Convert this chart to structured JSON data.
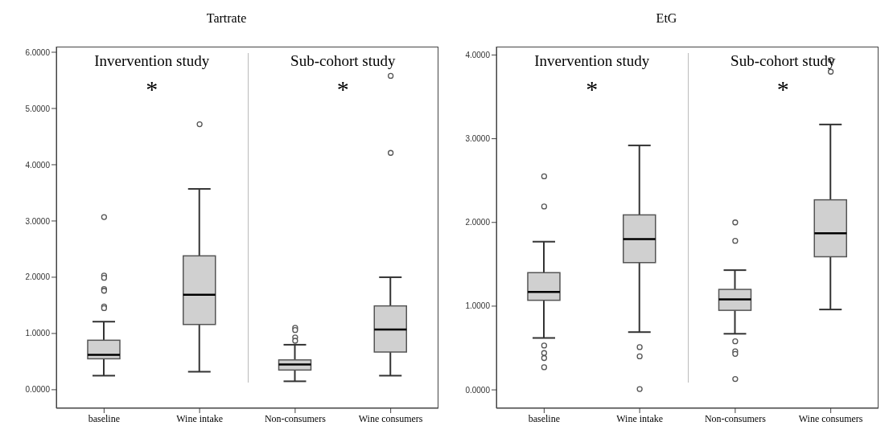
{
  "chart_data": [
    {
      "type": "box",
      "title": "Tartrate",
      "categories": [
        "baseline",
        "Wine intake",
        "Non-consumers",
        "Wine consumers"
      ],
      "color": "#d0d0d0",
      "boxes": [
        {
          "low": 0.25,
          "q1": 0.55,
          "median": 0.62,
          "q3": 0.88,
          "high": 1.21,
          "outliers": [
            3.07,
            2.03,
            1.99,
            1.79,
            1.76,
            1.48,
            1.45
          ]
        },
        {
          "low": 0.32,
          "q1": 1.16,
          "median": 1.69,
          "q3": 2.38,
          "high": 3.57,
          "outliers": [
            4.72
          ]
        },
        {
          "low": 0.15,
          "q1": 0.35,
          "median": 0.45,
          "q3": 0.53,
          "high": 0.8,
          "outliers": [
            1.1,
            1.06,
            0.93,
            0.87
          ]
        },
        {
          "low": 0.25,
          "q1": 0.67,
          "median": 1.07,
          "q3": 1.49,
          "high": 2.0,
          "outliers": [
            5.58,
            4.21
          ]
        }
      ],
      "ylim": [
        -0.33,
        6.1
      ],
      "yticks": [
        {
          "value": 0,
          "label": "0.0000"
        },
        {
          "value": 1,
          "label": "1.0000"
        },
        {
          "value": 2,
          "label": "2.0000"
        },
        {
          "value": 3,
          "label": "3.0000"
        },
        {
          "value": 4,
          "label": "4.0000"
        },
        {
          "value": 5,
          "label": "5.0000"
        },
        {
          "value": 6,
          "label": "6.0000"
        }
      ],
      "annotations": [
        "Invervention study",
        "Sub-cohort study",
        "*",
        "*"
      ]
    },
    {
      "type": "box",
      "title": "EtG",
      "categories": [
        "baseline",
        "Wine intake",
        "Non-consumers",
        "Wine consumers"
      ],
      "color": "#d0d0d0",
      "boxes": [
        {
          "low": 0.62,
          "q1": 1.07,
          "median": 1.17,
          "q3": 1.4,
          "high": 1.77,
          "outliers": [
            2.55,
            2.19,
            0.53,
            0.44,
            0.38,
            0.27
          ]
        },
        {
          "low": 0.69,
          "q1": 1.52,
          "median": 1.8,
          "q3": 2.09,
          "high": 2.92,
          "outliers": [
            0.51,
            0.4,
            0.01
          ]
        },
        {
          "low": 0.67,
          "q1": 0.95,
          "median": 1.08,
          "q3": 1.2,
          "high": 1.43,
          "outliers": [
            2.0,
            1.78,
            0.58,
            0.46,
            0.43,
            0.13
          ]
        },
        {
          "low": 0.96,
          "q1": 1.59,
          "median": 1.87,
          "q3": 2.27,
          "high": 3.17,
          "outliers": [
            3.94,
            3.8
          ]
        }
      ],
      "ylim": [
        -0.22,
        4.1
      ],
      "yticks": [
        {
          "value": 0,
          "label": "0.0000"
        },
        {
          "value": 1,
          "label": "1.0000"
        },
        {
          "value": 2,
          "label": "2.0000"
        },
        {
          "value": 3,
          "label": "3.0000"
        },
        {
          "value": 4,
          "label": "4.0000"
        }
      ],
      "annotations": [
        "Invervention study",
        "Sub-cohort study",
        "*",
        "*"
      ]
    }
  ]
}
